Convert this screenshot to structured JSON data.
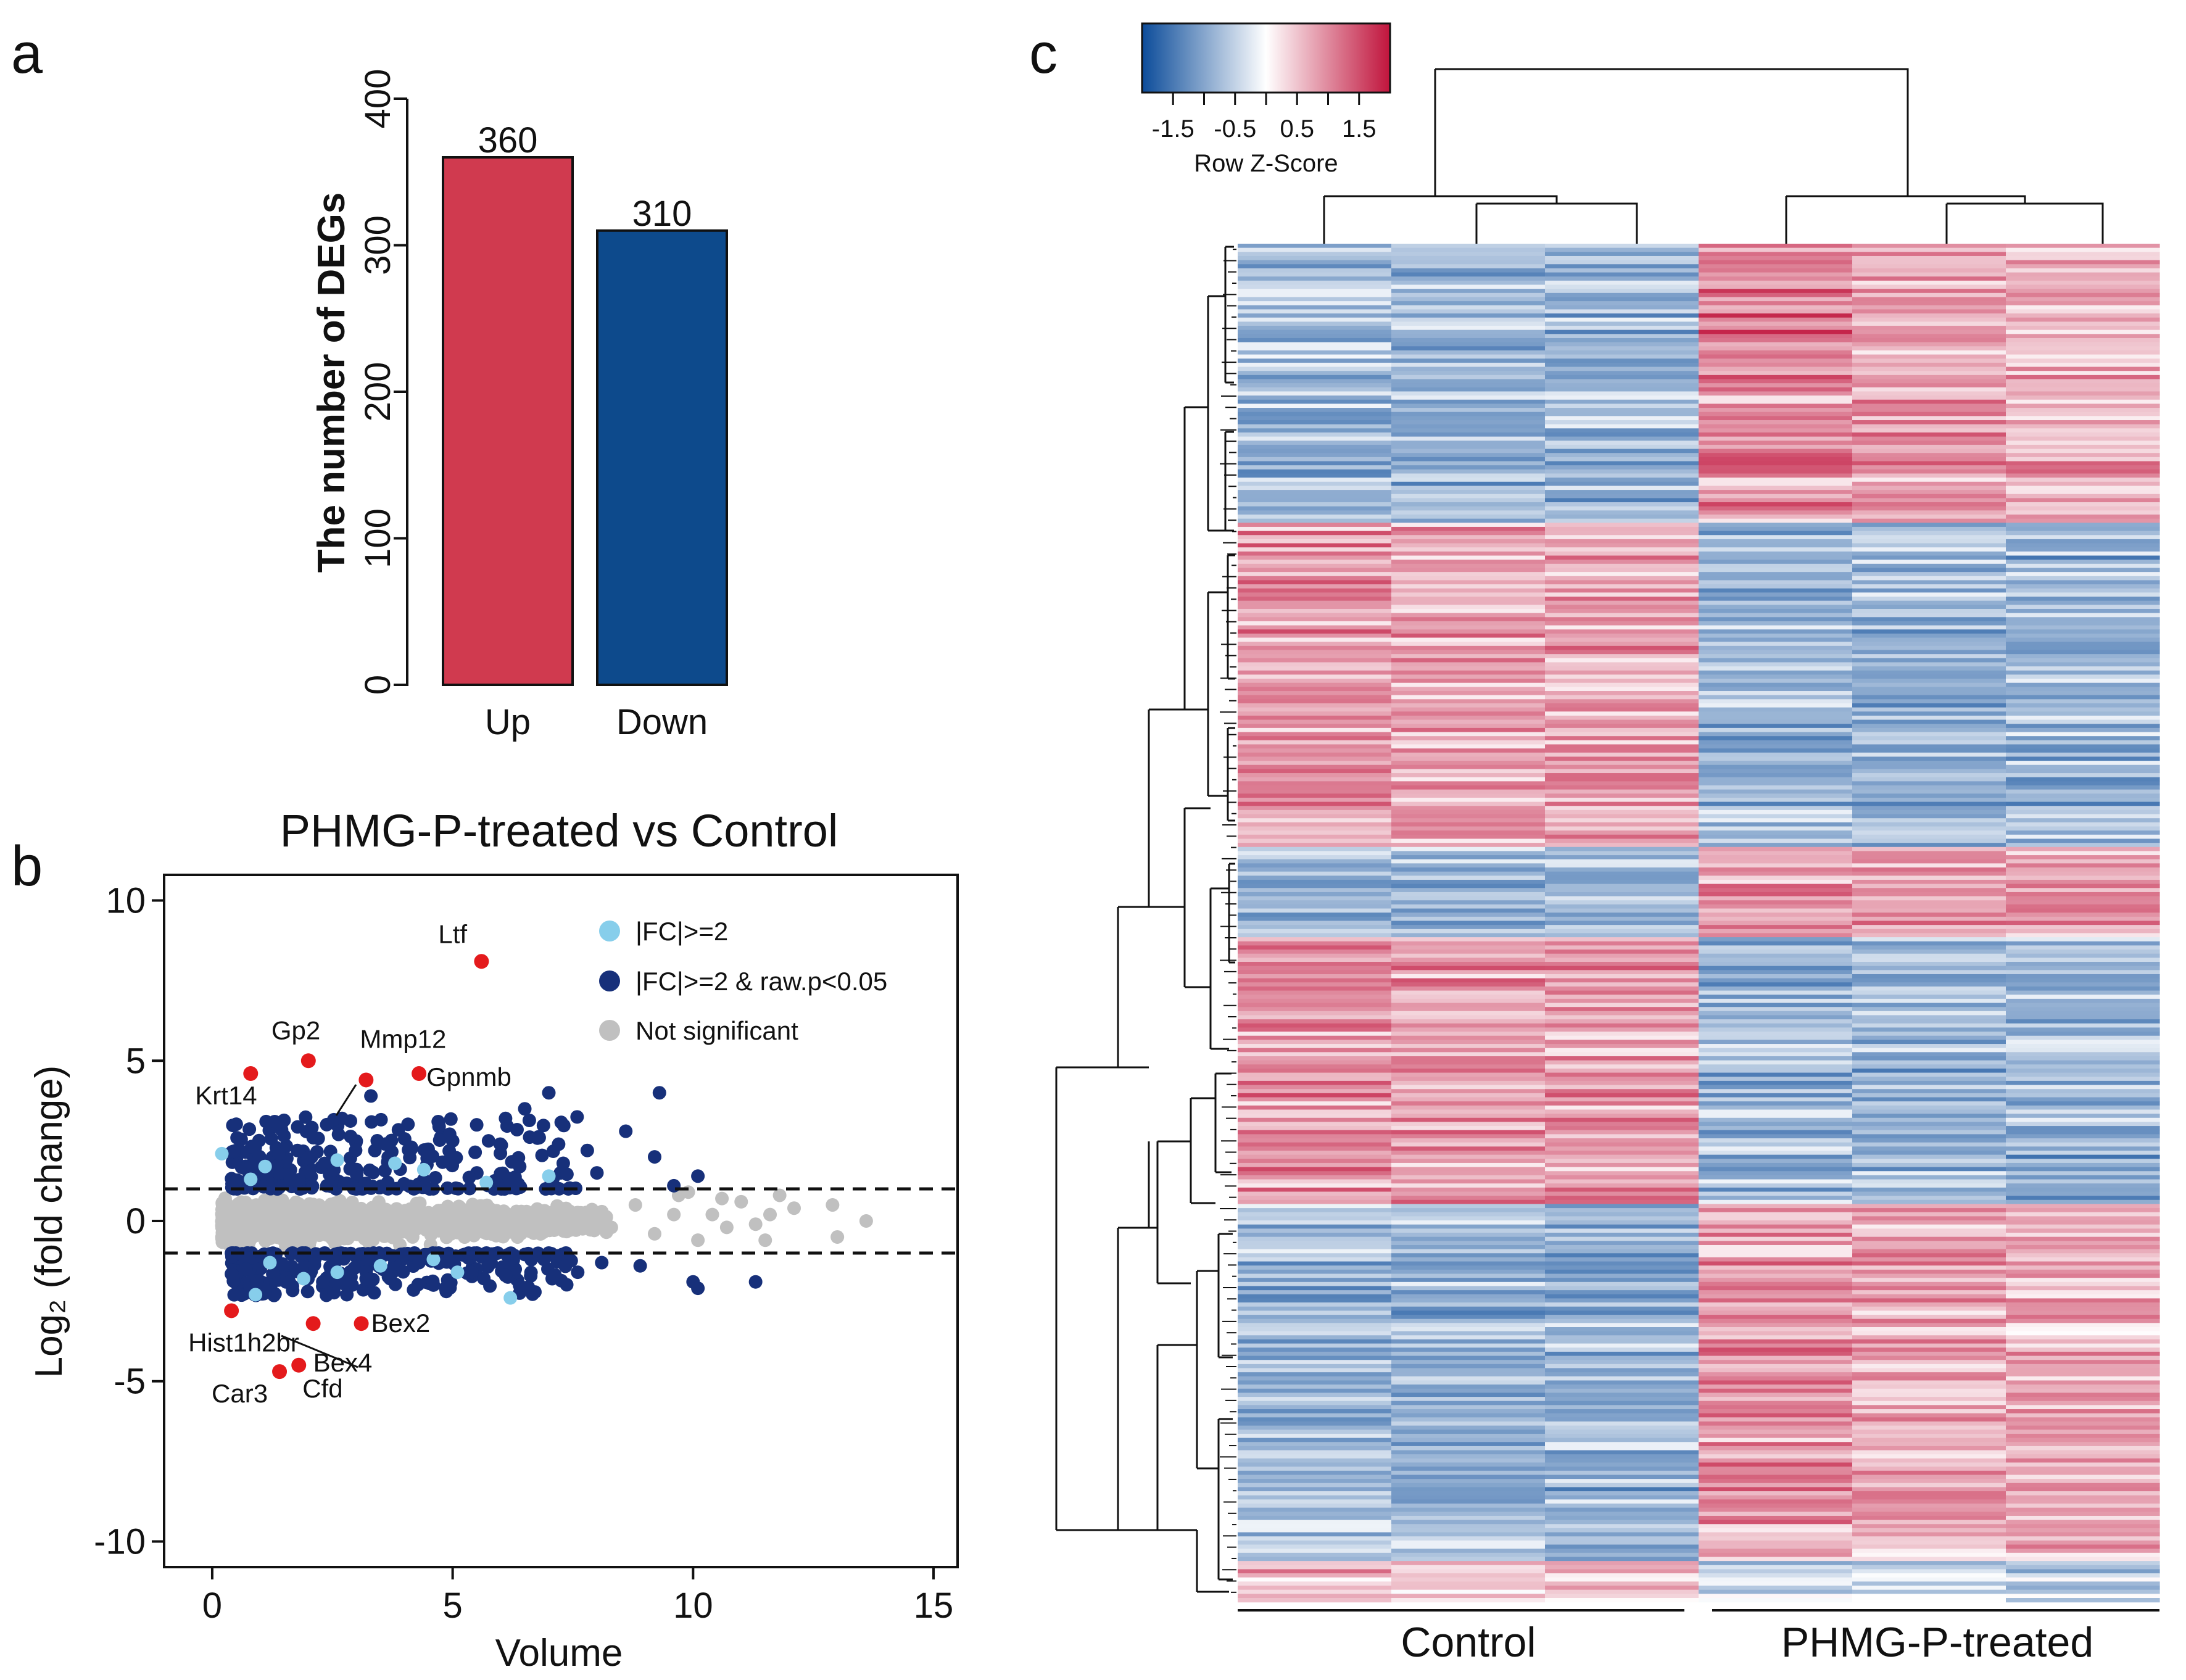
{
  "colors": {
    "up": "#d03a4f",
    "down": "#0d4a8c",
    "light_blue": "#87ceeb",
    "navy": "#17307a",
    "gray": "#c0c0c0",
    "red": "#e41a1c",
    "heat_low": "#0c4c9a",
    "heat_mid": "#ffffff",
    "heat_high": "#c0143c"
  },
  "panels": {
    "a": "a",
    "b": "b",
    "c": "c"
  },
  "chart_data": [
    {
      "id": "a",
      "type": "bar",
      "title": "",
      "categories": [
        "Up",
        "Down"
      ],
      "values": [
        360,
        310
      ],
      "value_labels": [
        "360",
        "310"
      ],
      "ylabel": "The number of DEGs",
      "ylim": [
        0,
        400
      ],
      "yticks": [
        0,
        100,
        200,
        300,
        400
      ],
      "ytick_labels": [
        "0",
        "100",
        "200",
        "300",
        "400"
      ],
      "grid": false
    },
    {
      "id": "b",
      "type": "scatter",
      "title": "PHMG-P-treated vs Control",
      "xlabel": "Volume",
      "ylabel": "Log₂ (fold change)",
      "xlim": [
        -1,
        15.5
      ],
      "ylim": [
        -10.8,
        10.8
      ],
      "xticks": [
        0,
        5,
        10,
        15
      ],
      "xtick_labels": [
        "0",
        "5",
        "10",
        "15"
      ],
      "yticks": [
        -10,
        -5,
        0,
        5,
        10
      ],
      "ytick_labels": [
        "-10",
        "-5",
        "0",
        "5",
        "10"
      ],
      "threshold_lines": [
        1,
        -1
      ],
      "legend": {
        "placement": "top-right",
        "entries": [
          "|FC|>=2",
          "|FC|>=2 & raw.p<0.05",
          "Not significant"
        ]
      },
      "labeled_points": [
        {
          "label": "Ltf",
          "x": 5.6,
          "y": 8.1
        },
        {
          "label": "Gp2",
          "x": 2.0,
          "y": 5.0
        },
        {
          "label": "Mmp12",
          "x": 3.2,
          "y": 4.4
        },
        {
          "label": "Gpnmb",
          "x": 4.3,
          "y": 4.6
        },
        {
          "label": "Krt14",
          "x": 0.8,
          "y": 4.6
        },
        {
          "label": "Hist1h2br",
          "x": 0.4,
          "y": -2.8
        },
        {
          "label": "Bex2",
          "x": 3.1,
          "y": -3.2
        },
        {
          "label": "Bex4",
          "x": 2.1,
          "y": -3.2
        },
        {
          "label": "Car3",
          "x": 1.4,
          "y": -4.7
        },
        {
          "label": "Cfd",
          "x": 1.8,
          "y": -4.5
        }
      ],
      "navy_points": [
        [
          9.3,
          4.0
        ],
        [
          6.5,
          3.5
        ],
        [
          7.0,
          4.0
        ],
        [
          5.5,
          3.0
        ],
        [
          3.3,
          3.9
        ],
        [
          6.1,
          3.2
        ],
        [
          8.6,
          2.8
        ],
        [
          9.2,
          2.0
        ],
        [
          8.0,
          1.5
        ],
        [
          10.1,
          1.4
        ],
        [
          7.8,
          2.2
        ],
        [
          6.8,
          2.6
        ],
        [
          4.7,
          3.1
        ],
        [
          2.7,
          3.2
        ],
        [
          1.3,
          3.1
        ],
        [
          2.1,
          2.6
        ],
        [
          3.6,
          2.4
        ],
        [
          5.0,
          2.5
        ],
        [
          7.3,
          1.8
        ],
        [
          9.6,
          1.1
        ],
        [
          8.9,
          -1.4
        ],
        [
          10.0,
          -1.9
        ],
        [
          11.3,
          -1.9
        ],
        [
          10.1,
          -2.1
        ],
        [
          5.4,
          -1.6
        ],
        [
          4.6,
          -2.0
        ],
        [
          7.6,
          -1.6
        ],
        [
          6.1,
          -1.7
        ],
        [
          3.7,
          -1.8
        ],
        [
          2.3,
          -1.9
        ],
        [
          1.6,
          -1.9
        ],
        [
          3.2,
          -1.8
        ],
        [
          8.1,
          -1.3
        ],
        [
          6.9,
          -1.2
        ],
        [
          1.1,
          -2.2
        ],
        [
          0.7,
          -1.5
        ],
        [
          4.3,
          -1.3
        ],
        [
          5.8,
          -1.3
        ],
        [
          2.8,
          -2.3
        ],
        [
          2.5,
          -1.4
        ]
      ],
      "light_blue_points": [
        [
          0.2,
          2.1
        ],
        [
          1.1,
          1.7
        ],
        [
          0.8,
          1.3
        ],
        [
          3.8,
          1.8
        ],
        [
          5.7,
          1.2
        ],
        [
          7.0,
          1.4
        ],
        [
          2.6,
          1.9
        ],
        [
          4.4,
          1.6
        ],
        [
          0.9,
          -2.3
        ],
        [
          1.2,
          -1.3
        ],
        [
          2.6,
          -1.6
        ],
        [
          3.5,
          -1.4
        ],
        [
          6.2,
          -2.4
        ],
        [
          5.1,
          -1.6
        ],
        [
          4.6,
          -1.2
        ],
        [
          1.9,
          -1.8
        ]
      ],
      "gray_tail_points": [
        [
          7.9,
          0.3
        ],
        [
          8.3,
          -0.2
        ],
        [
          8.8,
          0.5
        ],
        [
          9.2,
          -0.4
        ],
        [
          9.6,
          0.2
        ],
        [
          9.9,
          0.9
        ],
        [
          10.1,
          -0.6
        ],
        [
          10.4,
          0.2
        ],
        [
          10.7,
          -0.2
        ],
        [
          11.0,
          0.6
        ],
        [
          11.3,
          -0.1
        ],
        [
          11.6,
          0.2
        ],
        [
          11.5,
          -0.6
        ],
        [
          12.1,
          0.4
        ],
        [
          11.8,
          0.8
        ],
        [
          12.9,
          0.5
        ],
        [
          13.0,
          -0.5
        ],
        [
          13.6,
          0.0
        ],
        [
          10.6,
          0.7
        ],
        [
          9.7,
          0.8
        ]
      ],
      "gene_labels": [
        "Ltf",
        "Gp2",
        "Mmp12",
        "Gpnmb",
        "Krt14",
        "Hist1h2br",
        "Bex2",
        "Bex4",
        "Car3",
        "Cfd"
      ]
    },
    {
      "id": "c",
      "type": "heatmap",
      "title": "",
      "columns": [
        "Control",
        "Control",
        "Control",
        "PHMG-P-treated",
        "PHMG-P-treated",
        "PHMG-P-treated"
      ],
      "group_labels": [
        "Control",
        "PHMG-P-treated"
      ],
      "colorbar": {
        "label": "Row Z-Score",
        "range": [
          -2.0,
          2.0
        ],
        "ticks": [
          -1.5,
          -0.5,
          0.5,
          1.5
        ],
        "tick_labels": [
          "-1.5",
          "-0.5",
          "0.5",
          "1.5"
        ]
      },
      "row_blocks": [
        {
          "rows_fraction": 0.206,
          "pattern": [
            -1.0,
            -1.0,
            -1.0,
            1.3,
            1.0,
            0.9
          ]
        },
        {
          "rows_fraction": 0.238,
          "pattern": [
            1.1,
            1.0,
            1.0,
            -1.0,
            -1.0,
            -1.0
          ]
        },
        {
          "rows_fraction": 0.066,
          "pattern": [
            -1.0,
            -1.0,
            -1.0,
            1.1,
            1.0,
            1.0
          ]
        },
        {
          "rows_fraction": 0.197,
          "pattern": [
            1.1,
            1.0,
            1.0,
            -1.0,
            -1.0,
            -1.0
          ]
        },
        {
          "rows_fraction": 0.263,
          "pattern": [
            -0.9,
            -1.0,
            -1.0,
            1.1,
            0.9,
            0.8
          ]
        },
        {
          "rows_fraction": 0.03,
          "pattern": [
            0.8,
            0.4,
            0.6,
            -0.6,
            -0.6,
            -0.6
          ]
        }
      ],
      "column_dendrogram": "complete linkage: (C1,(C2,C3)) and (T1,(T2,T3))"
    }
  ]
}
